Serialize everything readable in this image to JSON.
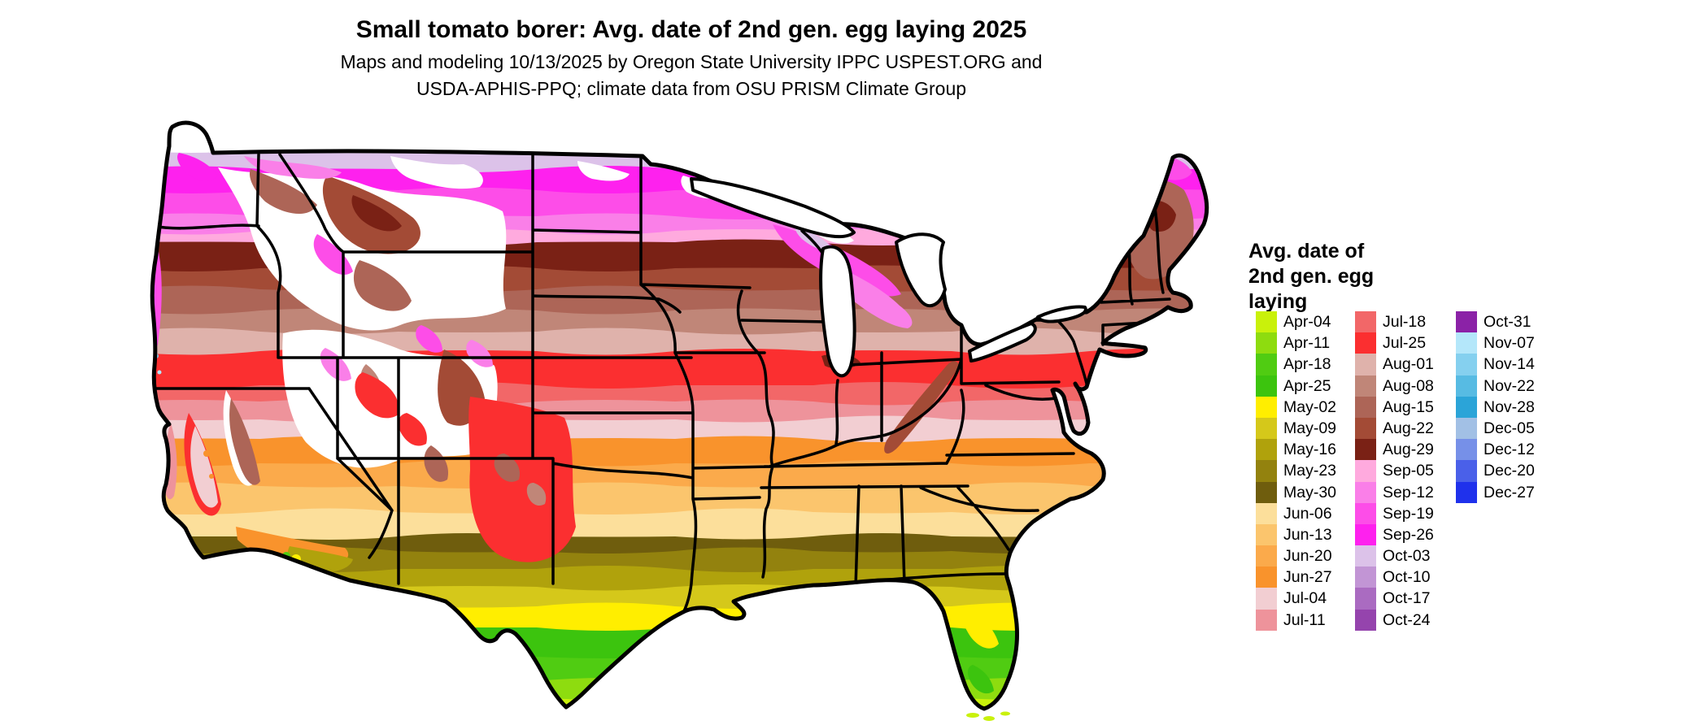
{
  "title": "Small tomato borer: Avg. date of 2nd gen. egg laying 2025",
  "subtitle_line1": "Maps and modeling 10/13/2025 by Oregon State University IPPC USPEST.ORG and",
  "subtitle_line2": "USDA-APHIS-PPQ; climate data from OSU PRISM Climate Group",
  "map": {
    "area": "Contiguous United States",
    "no_data_color": "#ffffff",
    "border_color": "#000000"
  },
  "legend": {
    "title_lines": [
      "Avg. date of",
      "2nd gen. egg",
      "laying"
    ],
    "columns": [
      [
        {
          "label": "Apr-04",
          "color": "#c9f10b"
        },
        {
          "label": "Apr-11",
          "color": "#8edc0f"
        },
        {
          "label": "Apr-18",
          "color": "#50cc12"
        },
        {
          "label": "Apr-25",
          "color": "#3cc40e"
        },
        {
          "label": "May-02",
          "color": "#ffee00"
        },
        {
          "label": "May-09",
          "color": "#d5c81a"
        },
        {
          "label": "May-16",
          "color": "#b0a20c"
        },
        {
          "label": "May-23",
          "color": "#93820e"
        },
        {
          "label": "May-30",
          "color": "#6f5d0d"
        },
        {
          "label": "Jun-06",
          "color": "#fcdf9b"
        },
        {
          "label": "Jun-13",
          "color": "#fbc56d"
        },
        {
          "label": "Jun-20",
          "color": "#fbaa4b"
        },
        {
          "label": "Jun-27",
          "color": "#f9932c"
        },
        {
          "label": "Jul-04",
          "color": "#f2ced2"
        },
        {
          "label": "Jul-11",
          "color": "#ee939b"
        }
      ],
      [
        {
          "label": "Jul-18",
          "color": "#f26768"
        },
        {
          "label": "Jul-25",
          "color": "#fb2f30"
        },
        {
          "label": "Aug-01",
          "color": "#dfb2ab"
        },
        {
          "label": "Aug-08",
          "color": "#c08678"
        },
        {
          "label": "Aug-15",
          "color": "#ad6557"
        },
        {
          "label": "Aug-22",
          "color": "#a34b36"
        },
        {
          "label": "Aug-29",
          "color": "#7a2115"
        },
        {
          "label": "Sep-05",
          "color": "#ffaade"
        },
        {
          "label": "Sep-12",
          "color": "#fa7fe8"
        },
        {
          "label": "Sep-19",
          "color": "#fd4de8"
        },
        {
          "label": "Sep-26",
          "color": "#fe21ee"
        },
        {
          "label": "Oct-03",
          "color": "#dcc2e9"
        },
        {
          "label": "Oct-10",
          "color": "#c295d5"
        },
        {
          "label": "Oct-17",
          "color": "#aa6bc1"
        },
        {
          "label": "Oct-24",
          "color": "#9544ad"
        }
      ],
      [
        {
          "label": "Oct-31",
          "color": "#8b22a7"
        },
        {
          "label": "Nov-07",
          "color": "#b4e7fa"
        },
        {
          "label": "Nov-14",
          "color": "#85d0ef"
        },
        {
          "label": "Nov-22",
          "color": "#57bbe3"
        },
        {
          "label": "Nov-28",
          "color": "#2ba4d8"
        },
        {
          "label": "Dec-05",
          "color": "#a2c0e5"
        },
        {
          "label": "Dec-12",
          "color": "#7690e8"
        },
        {
          "label": "Dec-20",
          "color": "#4a60e9"
        },
        {
          "label": "Dec-27",
          "color": "#1f31ec"
        }
      ]
    ]
  },
  "colors": {
    "Apr-04": "#c9f10b",
    "Apr-11": "#8edc0f",
    "Apr-18": "#50cc12",
    "Apr-25": "#3cc40e",
    "May-02": "#ffee00",
    "May-09": "#d5c81a",
    "May-16": "#b0a20c",
    "May-23": "#93820e",
    "May-30": "#6f5d0d",
    "Jun-06": "#fcdf9b",
    "Jun-13": "#fbc56d",
    "Jun-20": "#fbaa4b",
    "Jun-27": "#f9932c",
    "Jul-04": "#f2ced2",
    "Jul-11": "#ee939b",
    "Jul-18": "#f26768",
    "Jul-25": "#fb2f30",
    "Aug-01": "#dfb2ab",
    "Aug-08": "#c08678",
    "Aug-15": "#ad6557",
    "Aug-22": "#a34b36",
    "Aug-29": "#7a2115",
    "Sep-05": "#ffaade",
    "Sep-12": "#fa7fe8",
    "Sep-19": "#fd4de8",
    "Sep-26": "#fe21ee",
    "Oct-03": "#dcc2e9",
    "Oct-10": "#c295d5",
    "Oct-17": "#aa6bc1",
    "Oct-24": "#9544ad",
    "Oct-31": "#8b22a7",
    "Nov-07": "#b4e7fa",
    "Nov-14": "#85d0ef",
    "Nov-22": "#57bbe3",
    "Nov-28": "#2ba4d8",
    "Dec-05": "#a2c0e5",
    "Dec-12": "#7690e8",
    "Dec-20": "#4a60e9",
    "Dec-27": "#1f31ec",
    "white": "#ffffff"
  }
}
